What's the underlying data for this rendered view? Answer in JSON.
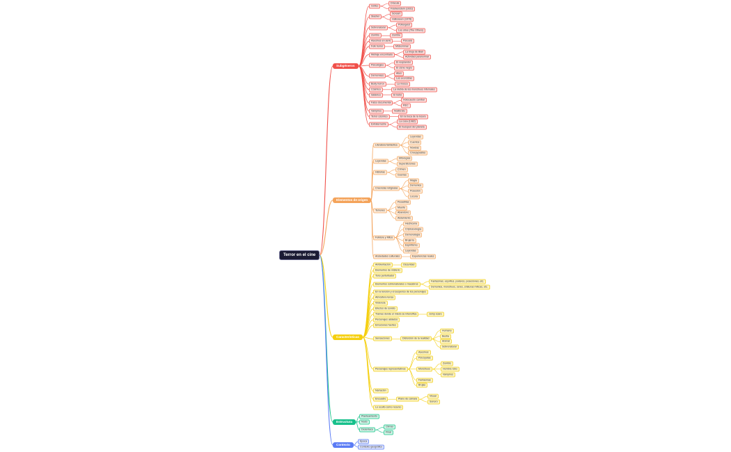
{
  "root": {
    "label": "Terror en el cine"
  },
  "colors": {
    "root": "#1b1b34",
    "branches": [
      {
        "main": "#f0504a",
        "fill": "#fde0de",
        "border": "#f27a74",
        "line": "#f0504a"
      },
      {
        "main": "#f4a35a",
        "fill": "#fde9d5",
        "border": "#f6bb85",
        "line": "#f4a35a"
      },
      {
        "main": "#f5cf0f",
        "fill": "#fdf4c4",
        "border": "#f3d84a",
        "line": "#f5cf0f"
      },
      {
        "main": "#17c08b",
        "fill": "#d2f5e8",
        "border": "#46cf9f",
        "line": "#17c08b"
      },
      {
        "main": "#5b7cf5",
        "fill": "#dfe5fd",
        "border": "#7e98f5",
        "line": "#5b7cf5"
      }
    ]
  },
  "branches": [
    {
      "label": "Subgéneros",
      "children": [
        {
          "label": "Gótico",
          "children": [
            {
              "label": "Drácula"
            },
            {
              "label": "Frankenstein (1931)"
            }
          ]
        },
        {
          "label": "Slasher",
          "children": [
            {
              "label": "Scream"
            },
            {
              "label": "Halloween (1978)"
            }
          ]
        },
        {
          "label": "Sobrenatural",
          "children": [
            {
              "label": "Poltergeist"
            },
            {
              "label": "Los otros (The Others)"
            }
          ]
        },
        {
          "label": "Zombis",
          "children": [
            {
              "label": "Zombie"
            }
          ]
        },
        {
          "label": "Asesinos en serie",
          "children": [
            {
              "label": "Psicosis"
            }
          ]
        },
        {
          "label": "Folk horror",
          "children": [
            {
              "label": "Midsommar"
            }
          ]
        },
        {
          "label": "Metraje encontrado",
          "children": [
            {
              "label": "La bruja de Blair"
            },
            {
              "label": "Actividad paranormal"
            }
          ]
        },
        {
          "label": "Psicológico",
          "children": [
            {
              "label": "El resplandor"
            },
            {
              "label": "El cisne negro"
            }
          ]
        },
        {
          "label": "Demoníaco",
          "children": [
            {
              "label": "Alien"
            },
            {
              "label": "Los exorcistas"
            }
          ]
        },
        {
          "label": "Body horror",
          "children": [
            {
              "label": "La mosca"
            }
          ]
        },
        {
          "label": "Cósmico",
          "children": [
            {
              "label": "La niebla de los monstruos infernales"
            }
          ]
        },
        {
          "label": "Satánico",
          "children": [
            {
              "label": "El bebé"
            }
          ]
        },
        {
          "label": "Falso documental",
          "children": [
            {
              "label": "Holocausto caníbal"
            },
            {
              "label": "REC"
            }
          ]
        },
        {
          "label": "Vampiros",
          "children": [
            {
              "label": "Nosferatu"
            }
          ]
        },
        {
          "label": "Terror cósmico",
          "children": [
            {
              "label": "En la boca de la locura"
            }
          ]
        },
        {
          "label": "Extraterrestre",
          "children": [
            {
              "label": "La cosa (1982)"
            },
            {
              "label": "El huésped del planeta"
            }
          ]
        }
      ]
    },
    {
      "label": "Elementos de origen",
      "children": [
        {
          "label": "Literatura fantástica",
          "children": [
            {
              "label": "Leyendas"
            },
            {
              "label": "Cuentos"
            },
            {
              "label": "Novelas"
            },
            {
              "label": "Creepypastas"
            }
          ]
        },
        {
          "label": "Leyendas",
          "children": [
            {
              "label": "Mitologías"
            },
            {
              "label": "Supersticiones"
            }
          ]
        },
        {
          "label": "Historias",
          "children": [
            {
              "label": "Crimen"
            },
            {
              "label": "Guerras"
            }
          ]
        },
        {
          "label": "Creencias religiosas",
          "children": [
            {
              "label": "Magia"
            },
            {
              "label": "Demonios"
            },
            {
              "label": "Posesión"
            },
            {
              "label": "Locura"
            }
          ]
        },
        {
          "label": "Temores",
          "children": [
            {
              "label": "Pesadillas"
            },
            {
              "label": "Muerte"
            },
            {
              "label": "Abandono"
            },
            {
              "label": "Aislamiento"
            }
          ]
        },
        {
          "label": "Folklore y Mitos",
          "children": [
            {
              "label": "Hechicería"
            },
            {
              "label": "Criptozoología"
            },
            {
              "label": "Demonología"
            },
            {
              "label": "Brujería"
            },
            {
              "label": "Espiritismo"
            },
            {
              "label": "Leyendas"
            }
          ]
        },
        {
          "label": "Ansiedades culturales",
          "children": [
            {
              "label": "Experiencias reales"
            }
          ]
        }
      ]
    },
    {
      "label": "Características",
      "children": [
        {
          "label": "Ambientación",
          "children": [
            {
              "label": "Oscuridad"
            }
          ]
        },
        {
          "label": "Elementos de misterio"
        },
        {
          "label": "Tono perturbador"
        },
        {
          "label": "Elementos sobrenaturales o macabros",
          "children": [
            {
              "label": "Fantasmas, espíritus, poderes, posesiones, etc."
            },
            {
              "label": "Demonios, monstruos, seres, criaturas míticas, etc."
            }
          ]
        },
        {
          "label": "En la tensión y el suspenso de los personajes"
        },
        {
          "label": "Atmósfera tensa"
        },
        {
          "label": "Violencia"
        },
        {
          "label": "Efectos de sonido"
        },
        {
          "label": "Tramas donde el miedo se intensifica",
          "children": [
            {
              "label": "Jump scare"
            }
          ]
        },
        {
          "label": "Personajes aislados"
        },
        {
          "label": "Emociones fuertes"
        },
        {
          "label": "Sensaciones",
          "children": [
            {
              "label": "Distorsión de la realidad",
              "children": [
                {
                  "label": "Humano"
                },
                {
                  "label": "Bestia"
                },
                {
                  "label": "Animal"
                },
                {
                  "label": "Sobrenatural"
                }
              ]
            }
          ]
        },
        {
          "label": "Personajes representativos",
          "children": [
            {
              "label": "Asesinos"
            },
            {
              "label": "Psicópatas"
            },
            {
              "label": "Monstruos",
              "children": [
                {
                  "label": "Zombis"
                },
                {
                  "label": "Hombre lobo"
                },
                {
                  "label": "Vampiros"
                }
              ]
            },
            {
              "label": "Fantasmas"
            },
            {
              "label": "Brujas"
            }
          ]
        },
        {
          "label": "Narración"
        },
        {
          "label": "Encuadre",
          "children": [
            {
              "label": "Plano de cámara",
              "children": [
                {
                  "label": "Visual"
                },
                {
                  "label": "Sonoro"
                }
              ]
            }
          ]
        },
        {
          "label": "Lo oculto como recurso"
        }
      ]
    },
    {
      "label": "Estructura",
      "children": [
        {
          "label": "Planteamiento"
        },
        {
          "label": "Nudo"
        },
        {
          "label": "Desenlace",
          "children": [
            {
              "label": "Clímax"
            },
            {
              "label": "Final"
            }
          ]
        }
      ]
    },
    {
      "label": "Contexto",
      "children": [
        {
          "label": "Época"
        },
        {
          "label": "Contexto geográfico"
        }
      ]
    }
  ]
}
